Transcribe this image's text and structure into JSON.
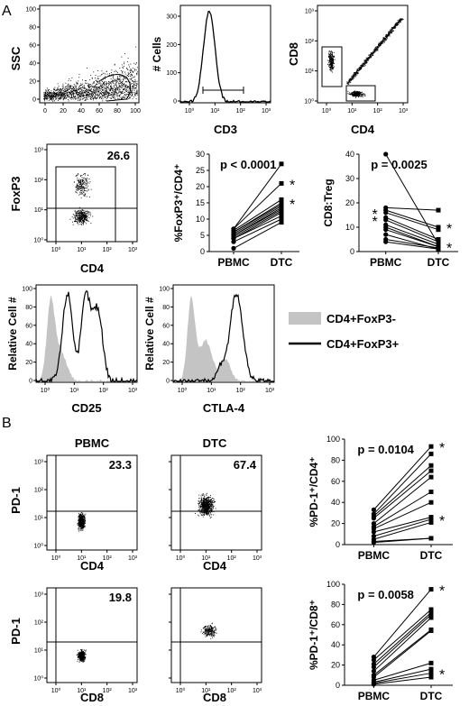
{
  "panel_labels": {
    "a": "A",
    "b": "B"
  },
  "row1": {
    "scatter_fsc_ssc": {
      "ylabel": "SSC",
      "xlabel": "FSC",
      "xticks": [
        "0",
        "20",
        "40",
        "60",
        "80",
        "100"
      ],
      "yticks": [
        "0",
        "20",
        "40",
        "60",
        "80",
        "100"
      ]
    },
    "hist_cd3": {
      "ylabel": "# Cells",
      "xlabel": "CD3",
      "xticks": [
        "10⁰",
        "10¹",
        "10²",
        "10³"
      ],
      "yticks": [
        "0",
        "100",
        "200",
        "300"
      ]
    },
    "scatter_cd4_cd8": {
      "ylabel": "CD8",
      "xlabel": "CD4",
      "xticks": [
        "10⁰",
        "10¹",
        "10²",
        "10³"
      ],
      "yticks": [
        "10⁰",
        "10¹",
        "10²",
        "10³"
      ]
    }
  },
  "row2": {
    "foxp3_dot": {
      "ylabel": "FoxP3",
      "xlabel": "CD4",
      "gate_value": "26.6",
      "xticks": [
        "10⁰",
        "10¹",
        "10²",
        "10³"
      ],
      "yticks": [
        "10⁰",
        "10¹",
        "10²",
        "10³"
      ]
    },
    "treg_pct": {
      "ylabel": "%FoxP3⁺/CD4⁺",
      "pvalue": "p < 0.0001",
      "star": "*",
      "categories": [
        "PBMC",
        "DTC"
      ],
      "yticks": [
        "0",
        "5",
        "10",
        "15",
        "20",
        "25",
        "30"
      ],
      "ylim": [
        0,
        30
      ]
    },
    "cd8_treg": {
      "ylabel": "CD8:Treg",
      "pvalue": "p = 0.0025",
      "star": "*",
      "categories": [
        "PBMC",
        "DTC"
      ],
      "yticks": [
        "0",
        "10",
        "20",
        "30",
        "40"
      ],
      "ylim": [
        0,
        40
      ]
    }
  },
  "row3": {
    "hist_cd25": {
      "ylabel": "Relative Cell #",
      "xlabel": "CD25",
      "xticks": [
        "10⁰",
        "10¹",
        "10²",
        "10³"
      ],
      "yticks": [
        "0",
        "20",
        "40",
        "60",
        "80",
        "100"
      ]
    },
    "hist_ctla4": {
      "ylabel": "Relative Cell #",
      "xlabel": "CTLA-4",
      "xticks": [
        "10⁰",
        "10¹",
        "10²",
        "10³"
      ],
      "yticks": [
        "0",
        "20",
        "40",
        "60",
        "80",
        "100"
      ]
    },
    "legend": {
      "neg": "CD4+FoxP3-",
      "pos": "CD4+FoxP3+",
      "neg_color": "#c4c4c4",
      "pos_color": "#000000"
    }
  },
  "sectionB": {
    "pbmc_title": "PBMC",
    "dtc_title": "DTC",
    "pd1_cd4_pbmc": {
      "ylabel": "PD-1",
      "xlabel": "CD4",
      "value": "23.3"
    },
    "pd1_cd4_dtc": {
      "xlabel": "CD4",
      "value": "67.4"
    },
    "pd1_cd8_pbmc": {
      "ylabel": "PD-1",
      "xlabel": "CD8",
      "value": "19.8"
    },
    "pd1_cd8_dtc": {
      "xlabel": "CD8"
    },
    "dot_xticks": [
      "10⁰",
      "10¹",
      "10²",
      "10³"
    ],
    "dot_yticks": [
      "10⁰",
      "10¹",
      "10²",
      "10³"
    ],
    "pd1_cd4_pct": {
      "ylabel": "%PD-1⁺/CD4⁺",
      "pvalue": "p = 0.0104",
      "star": "*",
      "categories": [
        "PBMC",
        "DTC"
      ],
      "yticks": [
        "0",
        "20",
        "40",
        "60",
        "80",
        "100"
      ],
      "ylim": [
        0,
        100
      ]
    },
    "pd1_cd8_pct": {
      "ylabel": "%PD-1⁺/CD8⁺",
      "pvalue": "p = 0.0058",
      "star": "*",
      "categories": [
        "PBMC",
        "DTC"
      ],
      "yticks": [
        "0",
        "20",
        "40",
        "60",
        "80",
        "100"
      ],
      "ylim": [
        0,
        100
      ]
    }
  },
  "chart_data": [
    {
      "type": "line",
      "ylabel": "%FoxP3⁺/CD4⁺",
      "categories": [
        "PBMC",
        "DTC"
      ],
      "ylim": [
        0,
        30
      ],
      "pairs": [
        [
          7,
          27
        ],
        [
          7,
          21
        ],
        [
          6.5,
          16
        ],
        [
          6,
          15
        ],
        [
          6,
          14.5
        ],
        [
          5.5,
          14
        ],
        [
          5,
          13.5
        ],
        [
          5,
          13
        ],
        [
          4.5,
          12.5
        ],
        [
          4,
          12
        ],
        [
          4,
          11
        ],
        [
          3,
          10
        ],
        [
          1,
          9
        ]
      ],
      "starred_dtc": [
        21,
        15
      ]
    },
    {
      "type": "line",
      "ylabel": "CD8:Treg",
      "categories": [
        "PBMC",
        "DTC"
      ],
      "ylim": [
        0,
        40
      ],
      "pairs": [
        [
          40,
          3
        ],
        [
          18,
          17
        ],
        [
          17,
          10
        ],
        [
          16,
          9
        ],
        [
          14,
          5
        ],
        [
          13,
          4
        ],
        [
          11,
          3
        ],
        [
          10,
          2
        ],
        [
          9,
          2
        ],
        [
          7,
          1
        ],
        [
          5,
          1.5
        ],
        [
          4,
          1
        ]
      ],
      "starred_pbmc": [
        16,
        13
      ],
      "starred_dtc": [
        10,
        2
      ]
    },
    {
      "type": "line",
      "ylabel": "%PD-1⁺/CD4⁺",
      "categories": [
        "PBMC",
        "DTC"
      ],
      "ylim": [
        0,
        100
      ],
      "pairs": [
        [
          33,
          93
        ],
        [
          29,
          86
        ],
        [
          27,
          75
        ],
        [
          25,
          70
        ],
        [
          20,
          64
        ],
        [
          17,
          50
        ],
        [
          15,
          40
        ],
        [
          12,
          26
        ],
        [
          8,
          24
        ],
        [
          5,
          21
        ],
        [
          3,
          6
        ],
        [
          2,
          6
        ]
      ],
      "starred_dtc": [
        93,
        24
      ]
    },
    {
      "type": "line",
      "ylabel": "%PD-1⁺/CD8⁺",
      "categories": [
        "PBMC",
        "DTC"
      ],
      "ylim": [
        0,
        100
      ],
      "pairs": [
        [
          28,
          95
        ],
        [
          25,
          75
        ],
        [
          21,
          72
        ],
        [
          18,
          70
        ],
        [
          14,
          67
        ],
        [
          10,
          55
        ],
        [
          8,
          54
        ],
        [
          5,
          22
        ],
        [
          3,
          16
        ],
        [
          2,
          12
        ],
        [
          1,
          8
        ]
      ],
      "starred_dtc": [
        95,
        12
      ]
    }
  ]
}
